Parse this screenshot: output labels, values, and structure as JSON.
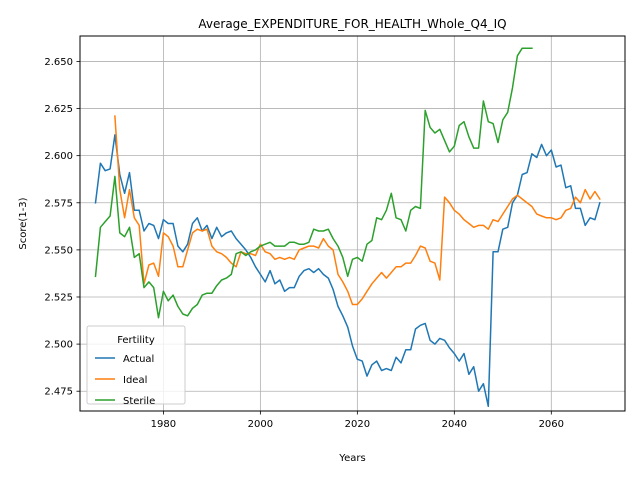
{
  "chart_data": {
    "type": "line",
    "title": "Average_EXPENDITURE_FOR_HEALTH_Whole_Q4_IQ",
    "xlabel": "Years",
    "ylabel": "Score(1-3)",
    "xlim": [
      1962.8,
      2075.2
    ],
    "ylim": [
      2.4645,
      2.6635
    ],
    "x_ticks": [
      1980,
      2000,
      2020,
      2040,
      2060
    ],
    "y_ticks": [
      2.475,
      2.5,
      2.525,
      2.55,
      2.575,
      2.6,
      2.625,
      2.65
    ],
    "y_tick_labels": [
      "2.475",
      "2.500",
      "2.525",
      "2.550",
      "2.575",
      "2.600",
      "2.625",
      "2.650"
    ],
    "grid": true,
    "legend": {
      "title": "Fertility",
      "placement": "lower left"
    },
    "series": [
      {
        "name": "Actual",
        "color": "#1f77b4",
        "x": [
          1966,
          1967,
          1968,
          1969,
          1970,
          1971,
          1972,
          1973,
          1974,
          1975,
          1976,
          1977,
          1978,
          1979,
          1980,
          1981,
          1982,
          1983,
          1984,
          1985,
          1986,
          1987,
          1988,
          1989,
          1990,
          1991,
          1992,
          1993,
          1994,
          1995,
          1996,
          1997,
          1998,
          1999,
          2000,
          2001,
          2002,
          2003,
          2004,
          2005,
          2006,
          2007,
          2008,
          2009,
          2010,
          2011,
          2012,
          2013,
          2014,
          2015,
          2016,
          2017,
          2018,
          2019,
          2020,
          2021,
          2022,
          2023,
          2024,
          2025,
          2026,
          2027,
          2028,
          2029,
          2030,
          2031,
          2032,
          2033,
          2034,
          2035,
          2036,
          2037,
          2038,
          2039,
          2040,
          2041,
          2042,
          2043,
          2044,
          2045,
          2046,
          2047,
          2048,
          2049,
          2050,
          2051,
          2052,
          2053,
          2054,
          2055,
          2056,
          2057,
          2058,
          2059,
          2060,
          2061,
          2062,
          2063,
          2064,
          2065,
          2066,
          2067,
          2068,
          2069,
          2070
        ],
        "values": [
          2.575,
          2.596,
          2.592,
          2.593,
          2.611,
          2.59,
          2.58,
          2.591,
          2.571,
          2.571,
          2.56,
          2.564,
          2.563,
          2.556,
          2.566,
          2.564,
          2.564,
          2.552,
          2.549,
          2.553,
          2.564,
          2.567,
          2.56,
          2.563,
          2.556,
          2.562,
          2.557,
          2.559,
          2.56,
          2.556,
          2.553,
          2.55,
          2.546,
          2.541,
          2.537,
          2.533,
          2.539,
          2.532,
          2.534,
          2.528,
          2.53,
          2.53,
          2.536,
          2.539,
          2.54,
          2.538,
          2.54,
          2.537,
          2.535,
          2.529,
          2.52,
          2.515,
          2.509,
          2.499,
          2.492,
          2.491,
          2.483,
          2.489,
          2.491,
          2.486,
          2.487,
          2.486,
          2.493,
          2.49,
          2.497,
          2.497,
          2.508,
          2.51,
          2.511,
          2.502,
          2.5,
          2.503,
          2.502,
          2.498,
          2.495,
          2.491,
          2.495,
          2.484,
          2.488,
          2.475,
          2.479,
          2.467,
          2.549,
          2.549,
          2.561,
          2.562,
          2.575,
          2.579,
          2.59,
          2.591,
          2.601,
          2.599,
          2.606,
          2.6,
          2.603,
          2.594,
          2.595,
          2.583,
          2.584,
          2.572,
          2.572,
          2.563,
          2.567,
          2.566,
          2.575
        ]
      },
      {
        "name": "Ideal",
        "color": "#ff7f0e",
        "x": [
          1970,
          1971,
          1972,
          1973,
          1974,
          1975,
          1976,
          1977,
          1978,
          1979,
          1980,
          1981,
          1982,
          1983,
          1984,
          1985,
          1986,
          1987,
          1988,
          1989,
          1990,
          1991,
          1992,
          1993,
          1994,
          1995,
          1996,
          1997,
          1998,
          1999,
          2000,
          2001,
          2002,
          2003,
          2004,
          2005,
          2006,
          2007,
          2008,
          2009,
          2010,
          2011,
          2012,
          2013,
          2014,
          2015,
          2016,
          2017,
          2018,
          2019,
          2020,
          2021,
          2022,
          2023,
          2024,
          2025,
          2026,
          2027,
          2028,
          2029,
          2030,
          2031,
          2032,
          2033,
          2034,
          2035,
          2036,
          2037,
          2038,
          2039,
          2040,
          2041,
          2042,
          2043,
          2044,
          2045,
          2046,
          2047,
          2048,
          2049,
          2050,
          2051,
          2052,
          2053,
          2054,
          2055,
          2056,
          2057,
          2058,
          2059,
          2060,
          2061,
          2062,
          2063,
          2064,
          2065,
          2066,
          2067,
          2068,
          2069,
          2070
        ],
        "values": [
          2.621,
          2.582,
          2.567,
          2.582,
          2.567,
          2.563,
          2.532,
          2.542,
          2.543,
          2.536,
          2.559,
          2.557,
          2.552,
          2.541,
          2.541,
          2.55,
          2.559,
          2.561,
          2.56,
          2.561,
          2.552,
          2.549,
          2.548,
          2.546,
          2.543,
          2.541,
          2.549,
          2.548,
          2.548,
          2.547,
          2.553,
          2.549,
          2.548,
          2.545,
          2.546,
          2.545,
          2.546,
          2.545,
          2.55,
          2.551,
          2.552,
          2.552,
          2.551,
          2.556,
          2.552,
          2.55,
          2.537,
          2.533,
          2.528,
          2.521,
          2.521,
          2.524,
          2.528,
          2.532,
          2.535,
          2.538,
          2.535,
          2.538,
          2.541,
          2.541,
          2.543,
          2.543,
          2.547,
          2.552,
          2.551,
          2.544,
          2.543,
          2.534,
          2.578,
          2.575,
          2.571,
          2.569,
          2.566,
          2.564,
          2.562,
          2.563,
          2.563,
          2.561,
          2.566,
          2.565,
          2.569,
          2.573,
          2.577,
          2.579,
          2.577,
          2.575,
          2.573,
          2.569,
          2.568,
          2.567,
          2.567,
          2.566,
          2.567,
          2.571,
          2.572,
          2.578,
          2.575,
          2.582,
          2.577,
          2.581,
          2.577
        ]
      },
      {
        "name": "Sterile",
        "color": "#2ca02c",
        "x": [
          1966,
          1967,
          1968,
          1969,
          1970,
          1971,
          1972,
          1973,
          1974,
          1975,
          1976,
          1977,
          1978,
          1979,
          1980,
          1981,
          1982,
          1983,
          1984,
          1985,
          1986,
          1987,
          1988,
          1989,
          1990,
          1991,
          1992,
          1993,
          1994,
          1995,
          1996,
          1997,
          1998,
          1999,
          2000,
          2001,
          2002,
          2003,
          2004,
          2005,
          2006,
          2007,
          2008,
          2009,
          2010,
          2011,
          2012,
          2013,
          2014,
          2015,
          2016,
          2017,
          2018,
          2019,
          2020,
          2021,
          2022,
          2023,
          2024,
          2025,
          2026,
          2027,
          2028,
          2029,
          2030,
          2031,
          2032,
          2033,
          2034,
          2035,
          2036,
          2037,
          2038,
          2039,
          2040,
          2041,
          2042,
          2043,
          2044,
          2045,
          2046,
          2047,
          2048,
          2049,
          2050,
          2051,
          2052,
          2053,
          2054,
          2055,
          2056
        ],
        "values": [
          2.536,
          2.562,
          2.565,
          2.568,
          2.589,
          2.559,
          2.557,
          2.562,
          2.546,
          2.548,
          2.53,
          2.533,
          2.53,
          2.514,
          2.528,
          2.523,
          2.526,
          2.52,
          2.516,
          2.515,
          2.519,
          2.521,
          2.526,
          2.527,
          2.527,
          2.531,
          2.534,
          2.535,
          2.537,
          2.548,
          2.549,
          2.547,
          2.549,
          2.55,
          2.552,
          2.553,
          2.554,
          2.552,
          2.552,
          2.552,
          2.554,
          2.554,
          2.553,
          2.553,
          2.554,
          2.561,
          2.56,
          2.56,
          2.561,
          2.556,
          2.552,
          2.546,
          2.536,
          2.545,
          2.546,
          2.544,
          2.553,
          2.555,
          2.567,
          2.566,
          2.571,
          2.58,
          2.567,
          2.566,
          2.56,
          2.571,
          2.573,
          2.572,
          2.624,
          2.615,
          2.612,
          2.614,
          2.608,
          2.602,
          2.605,
          2.616,
          2.618,
          2.61,
          2.604,
          2.604,
          2.629,
          2.618,
          2.617,
          2.607,
          2.619,
          2.623,
          2.636,
          2.653,
          2.657,
          2.657,
          2.657
        ]
      }
    ]
  }
}
